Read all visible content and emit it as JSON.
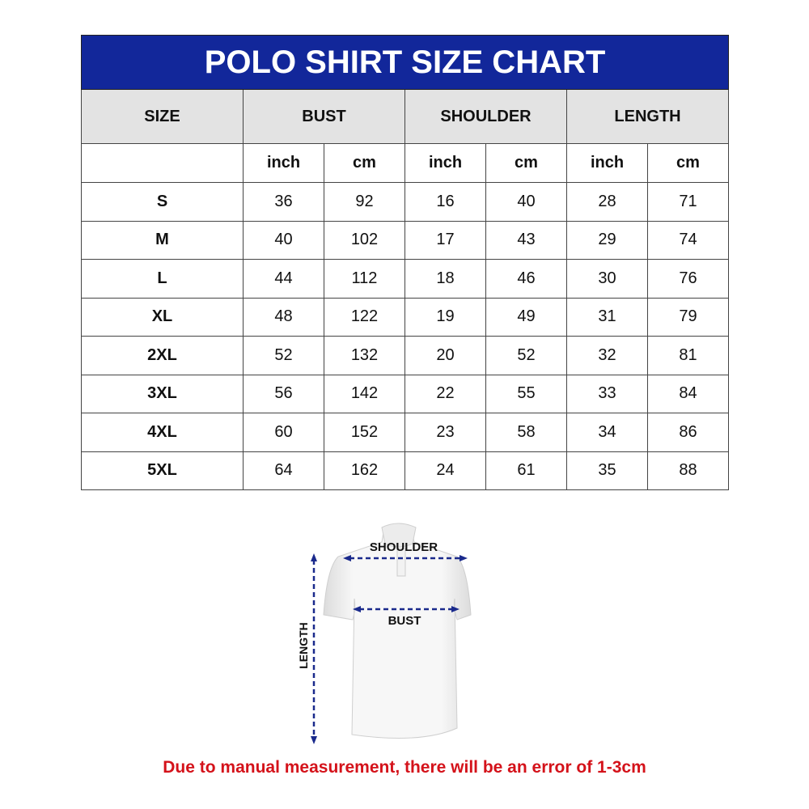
{
  "title": "POLO SHIRT SIZE CHART",
  "headers": {
    "size": "SIZE",
    "bust": "BUST",
    "shoulder": "SHOULDER",
    "length": "LENGTH"
  },
  "units": [
    "inch",
    "cm",
    "inch",
    "cm",
    "inch",
    "cm"
  ],
  "rows": [
    {
      "size": "S",
      "values": [
        "36",
        "92",
        "16",
        "40",
        "28",
        "71"
      ]
    },
    {
      "size": "M",
      "values": [
        "40",
        "102",
        "17",
        "43",
        "29",
        "74"
      ]
    },
    {
      "size": "L",
      "values": [
        "44",
        "112",
        "18",
        "46",
        "30",
        "76"
      ]
    },
    {
      "size": "XL",
      "values": [
        "48",
        "122",
        "19",
        "49",
        "31",
        "79"
      ]
    },
    {
      "size": "2XL",
      "values": [
        "52",
        "132",
        "20",
        "52",
        "32",
        "81"
      ]
    },
    {
      "size": "3XL",
      "values": [
        "56",
        "142",
        "22",
        "55",
        "33",
        "84"
      ]
    },
    {
      "size": "4XL",
      "values": [
        "60",
        "152",
        "23",
        "58",
        "34",
        "86"
      ]
    },
    {
      "size": "5XL",
      "values": [
        "64",
        "162",
        "24",
        "61",
        "35",
        "88"
      ]
    }
  ],
  "diagram": {
    "shoulder": "SHOULDER",
    "bust": "BUST",
    "length": "LENGTH"
  },
  "note": "Due to manual measurement, there will be an error of 1-3cm",
  "colors": {
    "title_bg": "#12279a",
    "header_bg": "#e3e3e3",
    "arrow": "#1a2a8c",
    "note": "#d4121a"
  }
}
